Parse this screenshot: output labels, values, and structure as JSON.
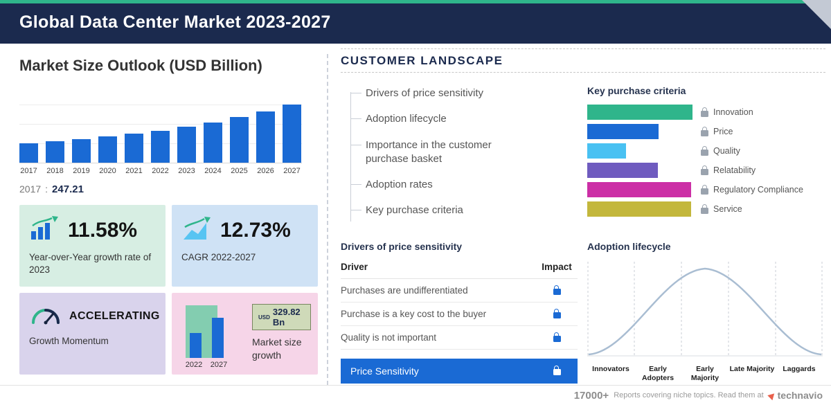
{
  "header": {
    "title": "Global Data Center Market 2023-2027"
  },
  "market_size": {
    "title": "Market Size Outlook (USD Billion)",
    "base_year": {
      "label": "2017",
      "separator": ":",
      "value": "247.21"
    }
  },
  "stats": {
    "yoy": {
      "value": "11.58%",
      "label": "Year-over-Year growth rate of 2023"
    },
    "cagr": {
      "value": "12.73%",
      "label": "CAGR 2022-2027"
    },
    "momentum": {
      "value": "ACCELERATING",
      "label": "Growth Momentum"
    },
    "growth": {
      "currency": "USD",
      "amount": "329.82 Bn",
      "label": "Market size growth",
      "year_start": "2022",
      "year_end": "2027"
    }
  },
  "customer_landscape": {
    "title": "CUSTOMER LANDSCAPE",
    "items": [
      "Drivers of price sensitivity",
      "Adoption lifecycle",
      "Importance in the customer purchase basket",
      "Adoption rates",
      "Key purchase criteria"
    ],
    "key_purchase_criteria": {
      "title": "Key purchase criteria"
    },
    "price_sensitivity": {
      "title": "Drivers of price sensitivity",
      "columns": [
        "Driver",
        "Impact"
      ],
      "rows": [
        "Purchases are undifferentiated",
        "Purchase is a key cost to the buyer",
        "Quality is not important"
      ],
      "highlight": "Price Sensitivity"
    },
    "adoption_lifecycle": {
      "title": "Adoption lifecycle"
    }
  },
  "footer": {
    "count": "17000+",
    "text": "Reports covering niche topics. Read them at",
    "brand": "technavio"
  },
  "colors": {
    "accent_teal": "#2fb58b",
    "brand_blue": "#1a6ad4",
    "header_navy": "#1b2a4e",
    "highlight_row": "#1a6ad4"
  },
  "chart_data": [
    {
      "id": "market_size",
      "type": "bar",
      "title": "Market Size Outlook (USD Billion)",
      "categories": [
        "2017",
        "2018",
        "2019",
        "2020",
        "2021",
        "2022",
        "2023",
        "2024",
        "2025",
        "2026",
        "2027"
      ],
      "values": [
        247.21,
        272,
        299,
        329,
        363,
        402.3,
        448.9,
        506,
        570,
        643,
        732.1
      ],
      "ylabel": "USD Billion",
      "grid": true,
      "annotations": [
        {
          "x": "2017",
          "text": "247.21"
        }
      ]
    },
    {
      "id": "key_purchase_criteria",
      "type": "bar",
      "orientation": "horizontal",
      "categories": [
        "Innovation",
        "Price",
        "Quality",
        "Relatability",
        "Regulatory Compliance",
        "Service"
      ],
      "values": [
        100,
        68,
        37,
        67,
        99,
        99
      ],
      "value_scale": "relative-length-percent",
      "colors": [
        "#2fb58b",
        "#1a6ad4",
        "#49c1f2",
        "#6f5bbf",
        "#cc2fa6",
        "#c3b73c"
      ],
      "legend_position": "right"
    },
    {
      "id": "adoption_lifecycle",
      "type": "line",
      "curve": "bell",
      "categories": [
        "Innovators",
        "Early Adopters",
        "Early Majority",
        "Late Majority",
        "Laggards"
      ],
      "values": [
        5,
        40,
        100,
        40,
        5
      ]
    },
    {
      "id": "market_size_growth",
      "type": "bar",
      "categories": [
        "2022",
        "2027"
      ],
      "values": [
        36,
        58
      ],
      "value_scale": "relative-height-px",
      "label": "USD 329.82 Bn"
    }
  ]
}
